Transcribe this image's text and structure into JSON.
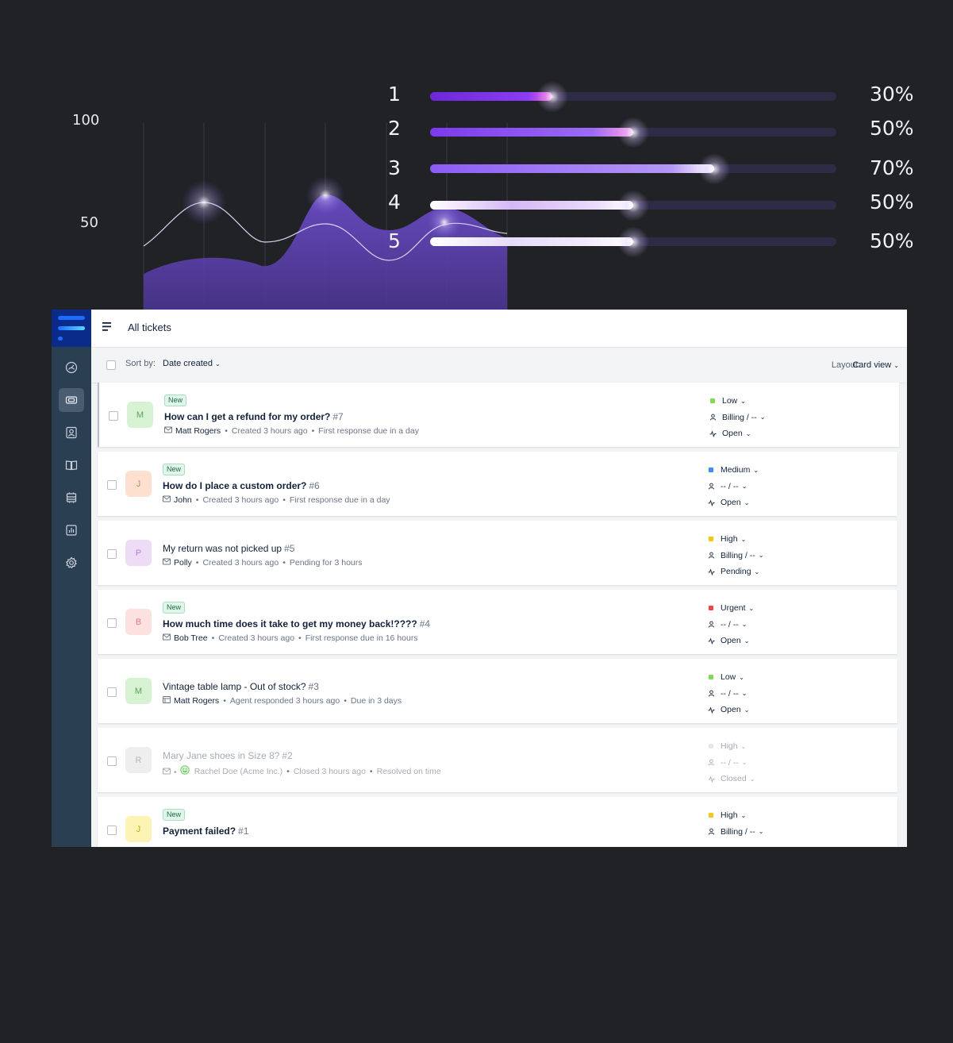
{
  "decor": {
    "axis_labels": [
      "100",
      "50"
    ],
    "bars": [
      {
        "index": "1",
        "percent_label": "30%",
        "value": 0.3,
        "color": "#7c3aed"
      },
      {
        "index": "2",
        "percent_label": "50%",
        "value": 0.5,
        "color": "#8b5cf6"
      },
      {
        "index": "3",
        "percent_label": "70%",
        "value": 0.7,
        "color": "#9d72f3"
      },
      {
        "index": "4",
        "percent_label": "50%",
        "value": 0.5,
        "color": "#c8b3f7"
      },
      {
        "index": "5",
        "percent_label": "50%",
        "value": 0.5,
        "color": "#e4daf9"
      }
    ]
  },
  "sidebar": {
    "items": [
      {
        "icon": "dashboard-icon",
        "active": false
      },
      {
        "icon": "ticket-icon",
        "active": true
      },
      {
        "icon": "contacts-icon",
        "active": false
      },
      {
        "icon": "knowledge-base-icon",
        "active": false
      },
      {
        "icon": "inventory-icon",
        "active": false
      },
      {
        "icon": "reports-icon",
        "active": false
      },
      {
        "icon": "settings-icon",
        "active": false
      }
    ]
  },
  "header": {
    "title": "All tickets"
  },
  "filter": {
    "sort_label": "Sort by:",
    "sort_value": "Date created",
    "layout_label": "Layout:",
    "layout_value": "Card view"
  },
  "colors": {
    "accent": "#0b2b8a",
    "priority_low": "#7ed957",
    "priority_medium": "#3b8cf5",
    "priority_high": "#f5c518",
    "priority_urgent": "#ef4444"
  },
  "tickets": [
    {
      "initial": "M",
      "avatar_bg": "#d6f2d2",
      "avatar_fg": "#5aa455",
      "is_new": true,
      "new_label": "New",
      "subject": "How can I get a refund for my order?",
      "number": "#7",
      "channel": "email",
      "requester": "Matt Rogers",
      "meta1": "Created 3 hours ago",
      "meta2": "First response due in a day",
      "priority": "Low",
      "priority_color": "#7ed957",
      "group": "Billing / --",
      "status": "Open"
    },
    {
      "initial": "J",
      "avatar_bg": "#fde0cf",
      "avatar_fg": "#d9865a",
      "is_new": true,
      "new_label": "New",
      "subject": "How do I place a custom order?",
      "number": "#6",
      "channel": "email",
      "requester": "John",
      "meta1": "Created 3 hours ago",
      "meta2": "First response due in a day",
      "priority": "Medium",
      "priority_color": "#3b8cf5",
      "group": "-- / --",
      "status": "Open"
    },
    {
      "initial": "P",
      "avatar_bg": "#eedcf6",
      "avatar_fg": "#b07ccc",
      "is_new": false,
      "new_label": "",
      "subject": "My return was not picked up",
      "number": "#5",
      "channel": "email",
      "requester": "Polly",
      "meta1": "Created 3 hours ago",
      "meta2": "Pending for 3 hours",
      "priority": "High",
      "priority_color": "#f5c518",
      "group": "Billing / --",
      "status": "Pending"
    },
    {
      "initial": "B",
      "avatar_bg": "#fde0e0",
      "avatar_fg": "#e08080",
      "is_new": true,
      "new_label": "New",
      "subject": "How much time does it take to get my money back!????",
      "number": "#4",
      "channel": "email",
      "requester": "Bob Tree",
      "meta1": "Created 3 hours ago",
      "meta2": "First response due in 16 hours",
      "priority": "Urgent",
      "priority_color": "#ef4444",
      "group": "-- / --",
      "status": "Open"
    },
    {
      "initial": "M",
      "avatar_bg": "#d6f2d2",
      "avatar_fg": "#5aa455",
      "is_new": false,
      "new_label": "",
      "subject": "Vintage table lamp - Out of stock?",
      "number": "#3",
      "channel": "portal",
      "requester": "Matt Rogers",
      "meta1": "Agent responded 3 hours ago",
      "meta2": "Due in 3 days",
      "priority": "Low",
      "priority_color": "#7ed957",
      "group": "-- / --",
      "status": "Open"
    },
    {
      "initial": "R",
      "avatar_bg": "#eeeeee",
      "avatar_fg": "#b5b5b5",
      "is_new": false,
      "new_label": "",
      "closed": true,
      "subject": "Mary Jane shoes in Size 8?",
      "number": "#2",
      "channel": "email-satisfied",
      "requester": "Rachel Doe (Acme Inc.)",
      "meta1": "Closed 3 hours ago",
      "meta2": "Resolved on time",
      "priority": "High",
      "priority_color": "#e4e6e9",
      "group": "-- / --",
      "status": "Closed"
    },
    {
      "initial": "J",
      "avatar_bg": "#fdf3b5",
      "avatar_fg": "#c9a91e",
      "is_new": true,
      "new_label": "New",
      "subject": "Payment failed?",
      "number": "#1",
      "channel": "email",
      "requester": "",
      "meta1": "",
      "meta2": "",
      "priority": "High",
      "priority_color": "#f5c518",
      "group": "Billing / --",
      "status": ""
    }
  ]
}
